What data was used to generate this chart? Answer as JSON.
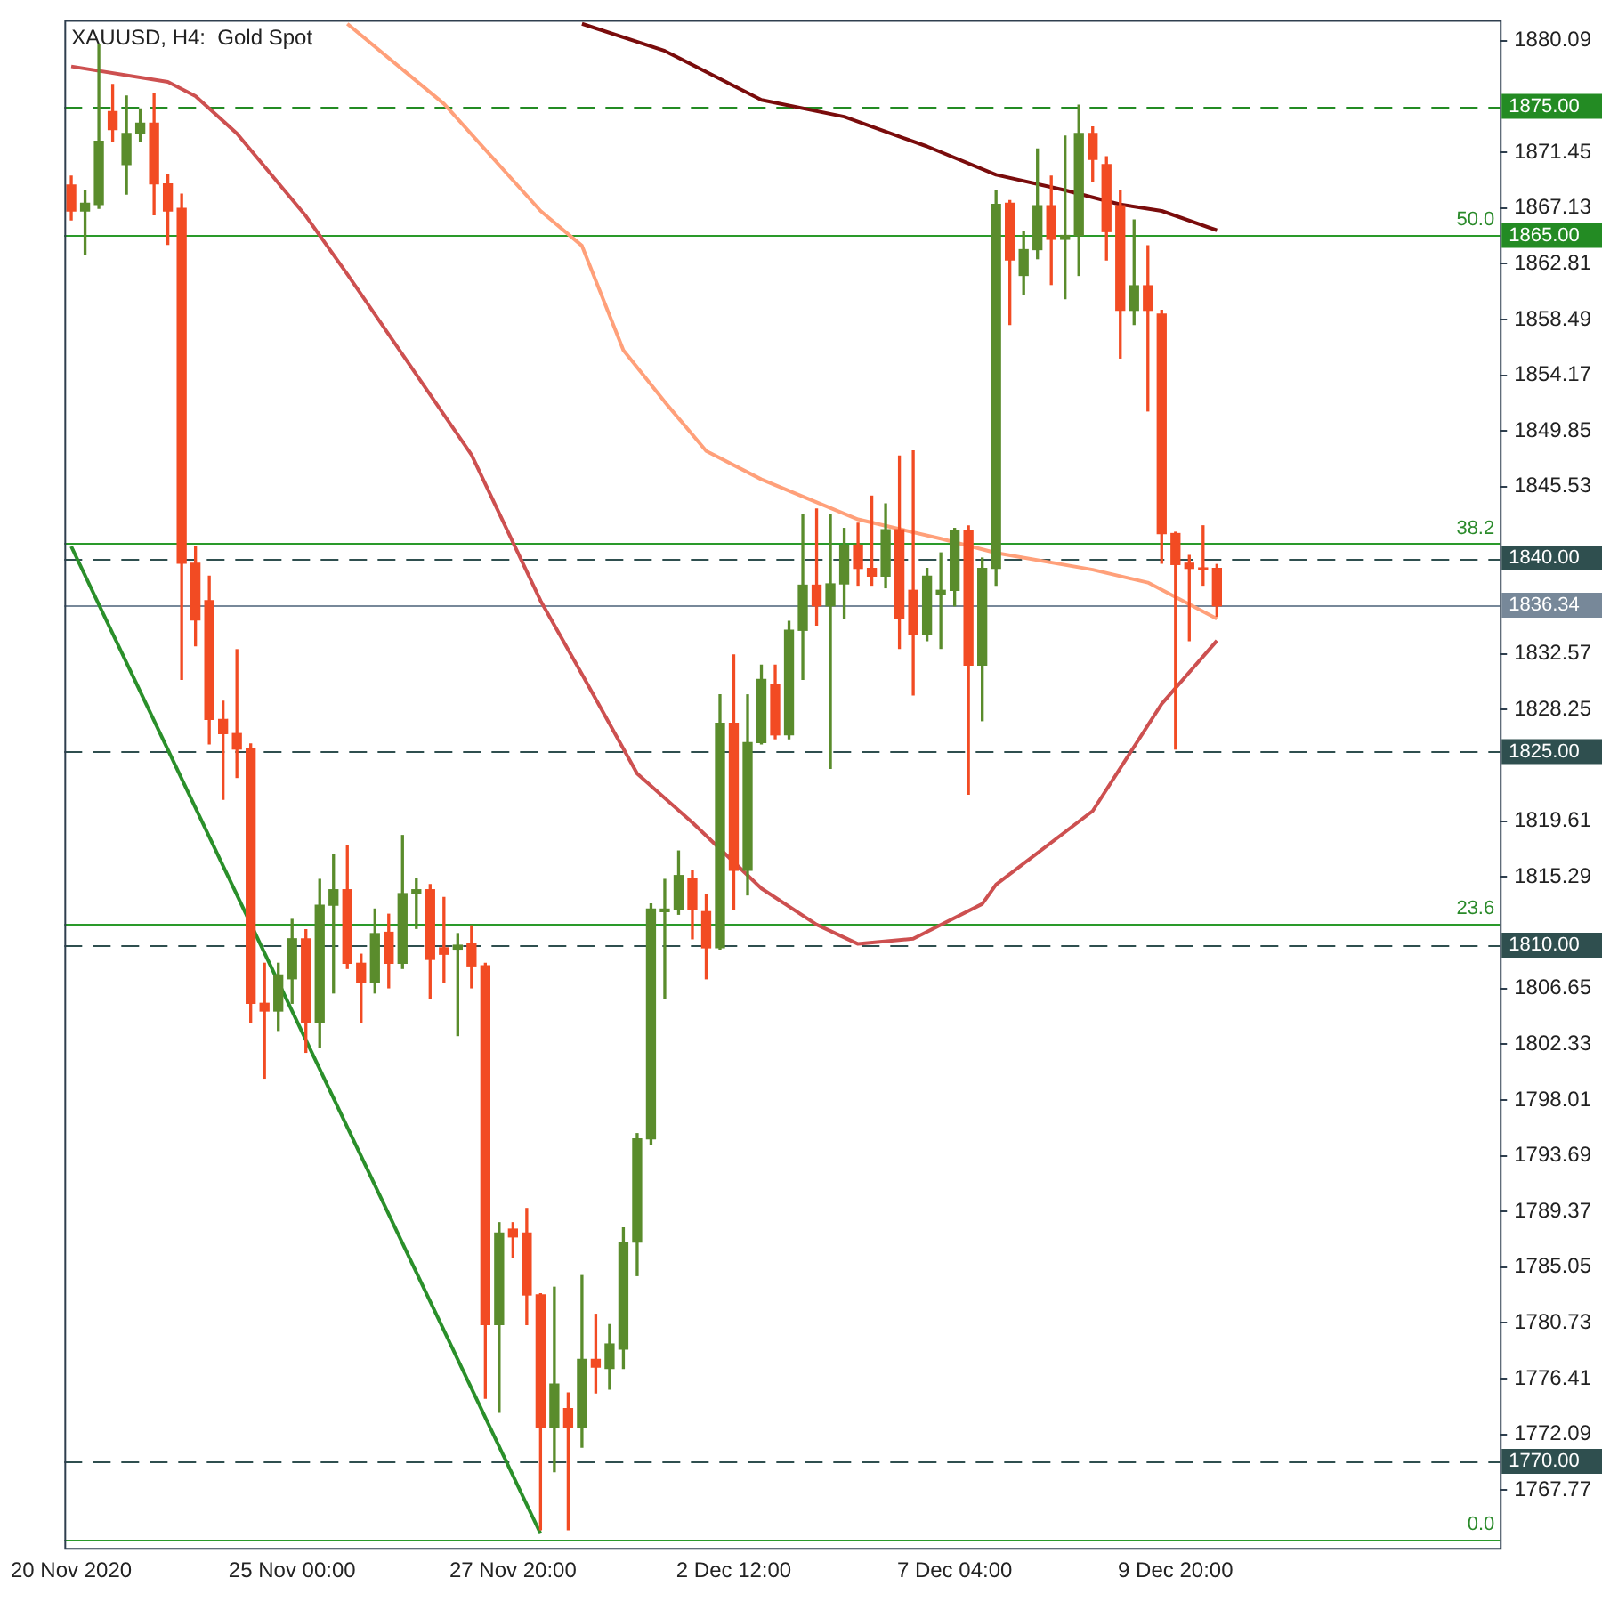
{
  "chart_data": {
    "type": "candlestick",
    "title": "XAUUSD, H4:  Gold Spot",
    "categories": [
      "20 Nov 2020",
      null,
      null,
      null,
      null,
      null,
      null,
      null,
      null,
      null,
      null,
      null,
      null,
      null,
      null,
      null,
      "25 Nov 00:00",
      null,
      null,
      null,
      null,
      null,
      null,
      null,
      null,
      null,
      null,
      null,
      null,
      null,
      null,
      null,
      "27 Nov 20:00",
      null,
      null,
      null,
      null,
      null,
      null,
      null,
      null,
      null,
      null,
      null,
      null,
      null,
      null,
      null,
      "2 Dec 12:00",
      null,
      null,
      null,
      null,
      null,
      null,
      null,
      null,
      null,
      null,
      null,
      null,
      null,
      null,
      null,
      "7 Dec 04:00",
      null,
      null,
      null,
      null,
      null,
      null,
      null,
      null,
      null,
      null,
      null,
      null,
      null,
      null,
      null,
      "9 Dec 20:00",
      null,
      null,
      null,
      null,
      null,
      null,
      null,
      null,
      null,
      null,
      null,
      null,
      null,
      null,
      null,
      null,
      null,
      null,
      null,
      null,
      null,
      null,
      null
    ],
    "ohlc": [
      [
        1868.9,
        1869.6,
        1866.2,
        1866.9
      ],
      [
        1866.9,
        1868.5,
        1863.5,
        1867.5
      ],
      [
        1867.4,
        1879.8,
        1867.1,
        1872.3
      ],
      [
        1874.6,
        1876.7,
        1872.3,
        1873.2
      ],
      [
        1870.5,
        1875.8,
        1868.2,
        1872.9
      ],
      [
        1872.9,
        1874.8,
        1872.3,
        1873.7
      ],
      [
        1873.7,
        1876.0,
        1866.6,
        1869.0
      ],
      [
        1869.0,
        1869.7,
        1864.3,
        1866.9
      ],
      [
        1867.1,
        1868.2,
        1830.6,
        1839.6
      ],
      [
        1839.6,
        1840.9,
        1833.2,
        1835.2
      ],
      [
        1836.7,
        1838.6,
        1825.6,
        1827.5
      ],
      [
        1827.5,
        1828.9,
        1821.3,
        1826.4
      ],
      [
        1826.4,
        1832.9,
        1823.0,
        1825.2
      ],
      [
        1825.2,
        1825.6,
        1804.0,
        1805.5
      ],
      [
        1805.5,
        1808.6,
        1799.7,
        1804.9
      ],
      [
        1804.9,
        1808.6,
        1803.4,
        1807.7
      ],
      [
        1807.4,
        1812.0,
        1805.5,
        1810.5
      ],
      [
        1810.5,
        1811.2,
        1801.7,
        1804.0
      ],
      [
        1804.0,
        1815.1,
        1802.1,
        1813.1
      ],
      [
        1813.1,
        1817.0,
        1806.3,
        1814.3
      ],
      [
        1814.3,
        1817.7,
        1808.2,
        1808.6
      ],
      [
        1808.6,
        1809.3,
        1804.0,
        1807.1
      ],
      [
        1807.1,
        1812.8,
        1806.3,
        1810.9
      ],
      [
        1811.0,
        1812.4,
        1806.7,
        1808.6
      ],
      [
        1808.6,
        1818.5,
        1808.2,
        1814.0
      ],
      [
        1814.0,
        1815.2,
        1811.3,
        1814.3
      ],
      [
        1814.3,
        1814.7,
        1805.9,
        1808.9
      ],
      [
        1809.8,
        1813.7,
        1807.1,
        1809.3
      ],
      [
        1809.7,
        1810.9,
        1803.0,
        1810.0
      ],
      [
        1810.1,
        1811.5,
        1806.7,
        1808.4
      ],
      [
        1808.4,
        1808.6,
        1774.9,
        1780.6
      ],
      [
        1780.6,
        1788.5,
        1773.8,
        1787.7
      ],
      [
        1788.0,
        1788.5,
        1785.8,
        1787.4
      ],
      [
        1787.7,
        1789.6,
        1780.6,
        1782.9
      ],
      [
        1782.9,
        1783.0,
        1764.7,
        1772.6
      ],
      [
        1772.6,
        1783.5,
        1769.2,
        1776.0
      ],
      [
        1774.1,
        1775.3,
        1764.7,
        1772.6
      ],
      [
        1772.6,
        1784.4,
        1771.1,
        1777.9
      ],
      [
        1777.9,
        1781.4,
        1775.3,
        1777.3
      ],
      [
        1777.2,
        1780.6,
        1775.6,
        1779.1
      ],
      [
        1778.7,
        1788.1,
        1777.2,
        1787.0
      ],
      [
        1787.0,
        1795.4,
        1784.4,
        1795.0
      ],
      [
        1795.0,
        1813.2,
        1794.6,
        1812.8
      ],
      [
        1812.6,
        1815.1,
        1805.9,
        1812.8
      ],
      [
        1812.8,
        1817.3,
        1812.4,
        1815.4
      ],
      [
        1815.2,
        1815.8,
        1810.5,
        1812.8
      ],
      [
        1812.6,
        1813.9,
        1807.4,
        1809.8
      ],
      [
        1809.8,
        1829.4,
        1809.7,
        1827.2
      ],
      [
        1827.2,
        1832.5,
        1812.8,
        1815.8
      ],
      [
        1815.8,
        1829.4,
        1813.9,
        1825.7
      ],
      [
        1825.7,
        1831.7,
        1825.6,
        1830.6
      ],
      [
        1830.2,
        1831.7,
        1826.0,
        1826.3
      ],
      [
        1826.3,
        1835.1,
        1826.0,
        1834.4
      ],
      [
        1834.4,
        1843.4,
        1830.6,
        1837.9
      ],
      [
        1837.9,
        1843.8,
        1834.8,
        1836.3
      ],
      [
        1836.3,
        1843.4,
        1823.7,
        1838.0
      ],
      [
        1838.0,
        1842.3,
        1835.3,
        1841.0
      ],
      [
        1841.0,
        1842.7,
        1837.9,
        1839.2
      ],
      [
        1839.2,
        1844.8,
        1837.9,
        1838.6
      ],
      [
        1838.6,
        1844.2,
        1837.7,
        1842.2
      ],
      [
        1842.2,
        1847.9,
        1833.0,
        1835.3
      ],
      [
        1837.5,
        1848.3,
        1829.4,
        1834.1
      ],
      [
        1834.1,
        1839.2,
        1833.6,
        1838.6
      ],
      [
        1837.2,
        1840.4,
        1833.0,
        1837.5
      ],
      [
        1837.5,
        1842.3,
        1836.3,
        1842.1
      ],
      [
        1842.1,
        1842.5,
        1821.7,
        1831.7
      ],
      [
        1831.7,
        1840.0,
        1827.4,
        1839.2
      ],
      [
        1839.2,
        1868.5,
        1837.9,
        1867.4
      ],
      [
        1867.5,
        1867.7,
        1858.1,
        1863.1
      ],
      [
        1861.9,
        1865.3,
        1860.4,
        1863.9
      ],
      [
        1863.9,
        1871.7,
        1863.2,
        1867.3
      ],
      [
        1867.3,
        1869.6,
        1861.2,
        1864.7
      ],
      [
        1864.7,
        1872.7,
        1860.1,
        1865.0
      ],
      [
        1865.0,
        1875.1,
        1861.9,
        1872.9
      ],
      [
        1872.9,
        1873.4,
        1869.2,
        1870.9
      ],
      [
        1870.5,
        1871.1,
        1863.1,
        1865.3
      ],
      [
        1867.3,
        1868.5,
        1855.5,
        1859.2
      ],
      [
        1859.2,
        1866.2,
        1858.1,
        1861.1
      ],
      [
        1861.1,
        1864.2,
        1851.4,
        1859.2
      ],
      [
        1858.9,
        1859.2,
        1839.6,
        1841.9
      ],
      [
        1841.9,
        1842.0,
        1825.2,
        1839.5
      ],
      [
        1839.6,
        1840.2,
        1833.6,
        1839.2
      ],
      [
        1839.2,
        1842.5,
        1837.9,
        1839.1
      ],
      [
        1839.2,
        1839.5,
        1835.5,
        1836.3
      ],
      null,
      null,
      null,
      null,
      null,
      null,
      null,
      null,
      null,
      null,
      null,
      null,
      null,
      null,
      null,
      null,
      null,
      null,
      null,
      null
    ],
    "series": [
      {
        "type": "line",
        "color": "#7a0c0c",
        "values": [
          null,
          null,
          null,
          null,
          null,
          null,
          null,
          null,
          null,
          null,
          null,
          null,
          null,
          null,
          null,
          null,
          null,
          null,
          null,
          null,
          null,
          null,
          null,
          null,
          null,
          null,
          null,
          null,
          null,
          null,
          null,
          null,
          null,
          null,
          null,
          null,
          null,
          1881.4,
          null,
          null,
          null,
          null,
          null,
          1879.3,
          null,
          null,
          null,
          null,
          null,
          null,
          1875.5,
          null,
          null,
          null,
          null,
          null,
          1874.2,
          null,
          null,
          null,
          null,
          null,
          1871.9,
          null,
          null,
          null,
          null,
          1869.7,
          null,
          null,
          null,
          null,
          1868.5,
          null,
          null,
          null,
          1867.4,
          null,
          null,
          1866.9,
          null,
          null,
          null,
          1865.4,
          null,
          null,
          null,
          null,
          null,
          null,
          null,
          null,
          null,
          null,
          null,
          null,
          null,
          null,
          null,
          null,
          null,
          null,
          null,
          null
        ]
      },
      {
        "type": "line",
        "color": "#ffa07a",
        "values": [
          null,
          null,
          null,
          null,
          null,
          null,
          null,
          null,
          null,
          null,
          null,
          null,
          null,
          null,
          null,
          null,
          null,
          null,
          null,
          null,
          1881.4,
          null,
          null,
          null,
          null,
          null,
          null,
          1875.2,
          null,
          null,
          null,
          null,
          null,
          null,
          1866.9,
          null,
          null,
          1864.2,
          null,
          null,
          1856.1,
          null,
          null,
          1852.1,
          null,
          null,
          1848.3,
          null,
          null,
          null,
          1846.1,
          null,
          null,
          null,
          null,
          null,
          null,
          1843.0,
          null,
          null,
          null,
          null,
          null,
          1841.5,
          null,
          null,
          null,
          1840.4,
          null,
          null,
          null,
          null,
          null,
          null,
          1839.1,
          null,
          null,
          null,
          1838.1,
          null,
          null,
          null,
          null,
          1835.3,
          null,
          null,
          null,
          null,
          null,
          null,
          null,
          null,
          null,
          null,
          null,
          null,
          null,
          null,
          null,
          null,
          null,
          null,
          null,
          null
        ]
      },
      {
        "type": "line",
        "color": "#cd5050",
        "values": [
          1878.1,
          null,
          null,
          null,
          null,
          null,
          null,
          1876.9,
          null,
          1875.8,
          null,
          null,
          1872.9,
          null,
          null,
          null,
          null,
          1866.5,
          null,
          null,
          1862.0,
          null,
          null,
          null,
          null,
          null,
          null,
          null,
          null,
          1848.0,
          null,
          null,
          null,
          null,
          1836.7,
          null,
          null,
          1831.0,
          null,
          null,
          null,
          1823.3,
          null,
          null,
          null,
          1819.5,
          null,
          null,
          null,
          null,
          1814.4,
          null,
          null,
          null,
          1811.6,
          null,
          null,
          1810.1,
          null,
          null,
          null,
          1810.5,
          null,
          null,
          null,
          null,
          1813.2,
          1814.7,
          null,
          null,
          null,
          null,
          null,
          null,
          1820.4,
          null,
          null,
          null,
          null,
          1828.7,
          null,
          null,
          null,
          1833.6,
          null,
          null,
          null,
          null,
          null,
          null,
          null,
          null,
          null,
          null,
          null,
          null,
          null,
          null,
          null,
          null,
          null,
          null,
          null,
          null
        ]
      },
      {
        "type": "line",
        "color": "#2a8f2a",
        "values": [
          1840.9,
          null,
          null,
          null,
          null,
          null,
          null,
          null,
          null,
          null,
          null,
          null,
          null,
          null,
          null,
          null,
          null,
          null,
          null,
          null,
          null,
          null,
          null,
          null,
          null,
          null,
          null,
          null,
          null,
          null,
          null,
          null,
          null,
          null,
          1764.4,
          null,
          null,
          null,
          null,
          null,
          null,
          null,
          null,
          null,
          null,
          null,
          null,
          null,
          null,
          null,
          null,
          null,
          null,
          null,
          null,
          null,
          null,
          null,
          null,
          null,
          null,
          null,
          null,
          null,
          null,
          null,
          null,
          null,
          null,
          null,
          null,
          null,
          null,
          null,
          null,
          null,
          null,
          null,
          null,
          null,
          null,
          null,
          null,
          null,
          null,
          null,
          null,
          null,
          null,
          null,
          null,
          null,
          null,
          null,
          null,
          null,
          null,
          null,
          null,
          null,
          null,
          null,
          null,
          null
        ]
      }
    ],
    "ylim": [
      1763.3,
      1881.7
    ],
    "yticks": [
      1880.09,
      1871.45,
      1867.13,
      1862.81,
      1858.49,
      1854.17,
      1849.85,
      1845.53,
      1832.57,
      1828.25,
      1819.61,
      1815.29,
      1806.65,
      1802.33,
      1798.01,
      1793.69,
      1789.37,
      1785.05,
      1780.73,
      1776.41,
      1772.09,
      1767.77
    ],
    "ref_lines": [
      {
        "axis": "y",
        "value": 1875,
        "label": "1875.00",
        "color": "#238b23",
        "line_style": "dashed"
      },
      {
        "axis": "y",
        "value": 1865,
        "label": "1865.00",
        "color": "#238b23",
        "line_style": "dashed"
      },
      {
        "axis": "y",
        "value": 1840,
        "label": "1840.00",
        "color": "#2f4f4f",
        "line_style": "dashed"
      },
      {
        "axis": "y",
        "value": 1836.34,
        "label": "1836.34",
        "color": "#778899",
        "line_style": "solid"
      },
      {
        "axis": "y",
        "value": 1825,
        "label": "1825.00",
        "color": "#2f4f4f",
        "line_style": "dashed"
      },
      {
        "axis": "y",
        "value": 1810,
        "label": "1810.00",
        "color": "#2f4f4f",
        "line_style": "dashed"
      },
      {
        "axis": "y",
        "value": 1770,
        "label": "1770.00",
        "color": "#2f4f4f",
        "line_style": "dashed"
      },
      {
        "axis": "y",
        "value": 1865.1,
        "color": "#2a9a2a",
        "line_style": "solid"
      },
      {
        "axis": "y",
        "value": 1841.2,
        "color": "#2a9a2a",
        "line_style": "solid"
      },
      {
        "axis": "y",
        "value": 1811.7,
        "color": "#2a9a2a",
        "line_style": "solid"
      },
      {
        "axis": "y",
        "value": 1764.0,
        "color": "#2a9a2a",
        "line_style": "solid"
      }
    ],
    "annotations": [
      {
        "text": "50.0",
        "y": 1865.1
      },
      {
        "text": "38.2",
        "y": 1841.2
      },
      {
        "text": "23.6",
        "y": 1811.7
      },
      {
        "text": "0.0",
        "y": 1764.0
      }
    ],
    "grid": false,
    "legend": false
  }
}
